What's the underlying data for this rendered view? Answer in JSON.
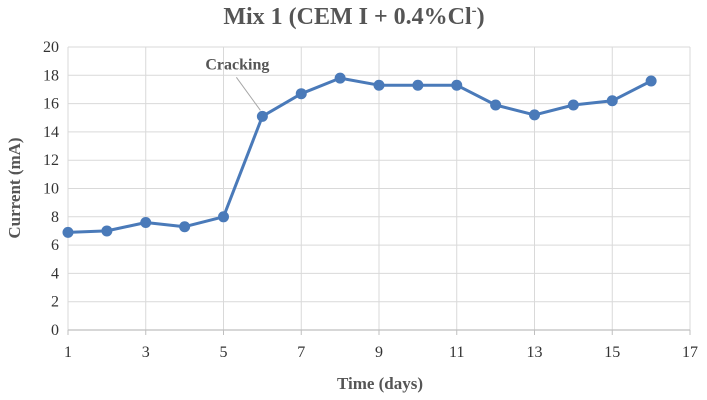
{
  "chart_data": {
    "type": "line",
    "title": "Mix 1 (CEM I + 0.4%Cl",
    "title_superscript": "-",
    "title_suffix": ")",
    "xlabel": "Time (days)",
    "ylabel": "Current  (mA)",
    "xlim": [
      1,
      17
    ],
    "ylim": [
      0,
      20
    ],
    "x_ticks": [
      1,
      3,
      5,
      7,
      9,
      11,
      13,
      15,
      17
    ],
    "y_ticks": [
      0,
      2,
      4,
      6,
      8,
      10,
      12,
      14,
      16,
      18,
      20
    ],
    "grid": true,
    "series": [
      {
        "x": [
          1,
          2,
          3,
          4,
          5,
          6,
          7,
          8,
          9,
          10,
          11,
          12,
          13,
          14,
          15,
          16
        ],
        "values": [
          6.9,
          7.0,
          7.6,
          7.3,
          8.0,
          15.1,
          16.7,
          17.8,
          17.3,
          17.3,
          17.3,
          15.9,
          15.2,
          15.9,
          16.2,
          17.6
        ],
        "color": "#4a7ab9"
      }
    ],
    "annotations": [
      {
        "text": "Cracking",
        "x": 6,
        "y": 15.1
      }
    ],
    "colors": {
      "line": "#4a7ab9",
      "grid": "#d9d9d9",
      "axis": "#bfbfbf",
      "text": "#555555"
    }
  }
}
